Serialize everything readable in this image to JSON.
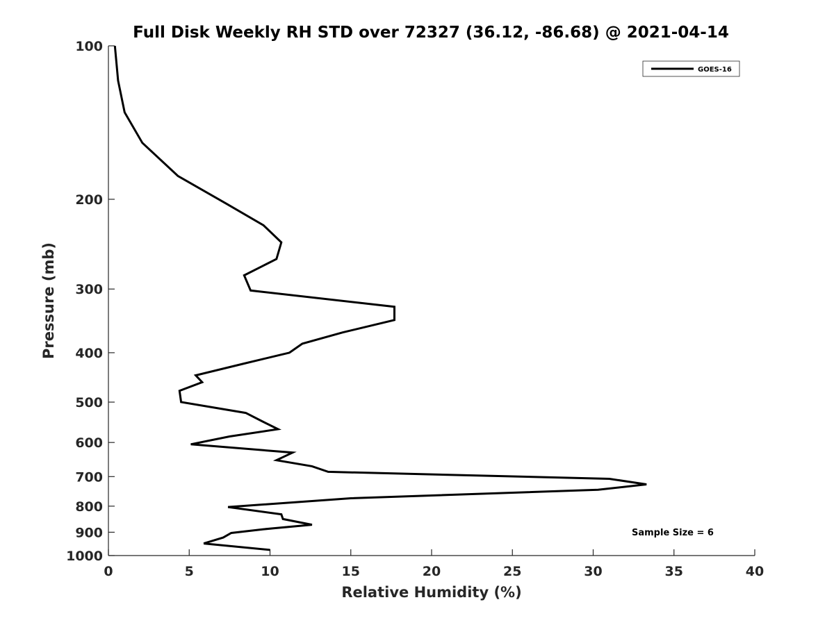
{
  "chart_data": {
    "type": "line",
    "title": "Full Disk Weekly RH STD over 72327 (36.12, -86.68) @ 2021-04-14",
    "xlabel": "Relative Humidity (%)",
    "ylabel": "Pressure (mb)",
    "xlim": [
      0,
      40
    ],
    "ylim": [
      100,
      1000
    ],
    "yscale": "log",
    "ydirection": "reverse",
    "xticks": [
      0,
      5,
      10,
      15,
      20,
      25,
      30,
      35,
      40
    ],
    "yticks": [
      100,
      200,
      300,
      400,
      500,
      600,
      700,
      800,
      900,
      1000
    ],
    "legend": {
      "position": "top-right",
      "entries": [
        "GOES-16"
      ]
    },
    "annotation": "Sample Size = 6",
    "series": [
      {
        "name": "GOES-16",
        "color": "#000000",
        "points": [
          [
            0.4,
            100
          ],
          [
            0.6,
            117
          ],
          [
            1.0,
            135
          ],
          [
            2.1,
            155
          ],
          [
            4.3,
            180
          ],
          [
            7.3,
            204
          ],
          [
            9.6,
            225
          ],
          [
            10.7,
            243
          ],
          [
            10.4,
            262
          ],
          [
            8.4,
            282
          ],
          [
            8.8,
            302
          ],
          [
            17.7,
            325
          ],
          [
            17.7,
            345
          ],
          [
            14.5,
            365
          ],
          [
            12.0,
            384
          ],
          [
            11.2,
            400
          ],
          [
            8.4,
            420
          ],
          [
            5.4,
            443
          ],
          [
            5.8,
            457
          ],
          [
            4.4,
            475
          ],
          [
            4.5,
            500
          ],
          [
            8.5,
            525
          ],
          [
            9.5,
            545
          ],
          [
            10.5,
            565
          ],
          [
            7.5,
            584
          ],
          [
            5.1,
            605
          ],
          [
            11.4,
            628
          ],
          [
            10.4,
            650
          ],
          [
            12.6,
            668
          ],
          [
            13.6,
            685
          ],
          [
            31.0,
            707
          ],
          [
            33.3,
            725
          ],
          [
            30.3,
            743
          ],
          [
            15.0,
            772
          ],
          [
            7.4,
            803
          ],
          [
            10.7,
            830
          ],
          [
            10.8,
            848
          ],
          [
            12.6,
            870
          ],
          [
            9.6,
            888
          ],
          [
            7.6,
            903
          ],
          [
            7.1,
            922
          ],
          [
            5.9,
            947
          ],
          [
            10.0,
            975
          ]
        ]
      }
    ]
  }
}
